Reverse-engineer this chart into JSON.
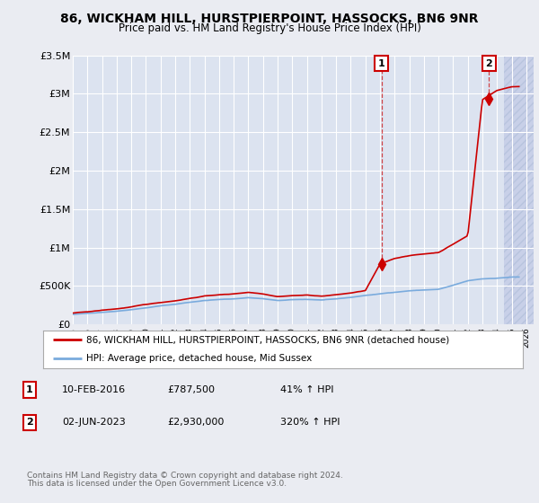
{
  "title": "86, WICKHAM HILL, HURSTPIERPOINT, HASSOCKS, BN6 9NR",
  "subtitle": "Price paid vs. HM Land Registry's House Price Index (HPI)",
  "title_fontsize": 10,
  "subtitle_fontsize": 8.5,
  "xlim": [
    1995.0,
    2026.5
  ],
  "ylim": [
    0,
    3500000
  ],
  "yticks": [
    0,
    500000,
    1000000,
    1500000,
    2000000,
    2500000,
    3000000,
    3500000
  ],
  "ytick_labels": [
    "£0",
    "£500K",
    "£1M",
    "£1.5M",
    "£2M",
    "£2.5M",
    "£3M",
    "£3.5M"
  ],
  "xtick_years": [
    1995,
    1996,
    1997,
    1998,
    1999,
    2000,
    2001,
    2002,
    2003,
    2004,
    2005,
    2006,
    2007,
    2008,
    2009,
    2010,
    2011,
    2012,
    2013,
    2014,
    2015,
    2016,
    2017,
    2018,
    2019,
    2020,
    2021,
    2022,
    2023,
    2024,
    2025,
    2026
  ],
  "background_color": "#eaecf2",
  "plot_bg_color": "#dce3f0",
  "hatch_color": "#c8d0e8",
  "grid_color": "#ffffff",
  "red_line_color": "#cc0000",
  "blue_line_color": "#7aabdd",
  "ann1_x": 2016.1,
  "ann1_y": 787500,
  "ann2_x": 2023.45,
  "ann2_y": 2930000,
  "legend_line1": "86, WICKHAM HILL, HURSTPIERPOINT, HASSOCKS, BN6 9NR (detached house)",
  "legend_line2": "HPI: Average price, detached house, Mid Sussex",
  "footer1": "Contains HM Land Registry data © Crown copyright and database right 2024.",
  "footer2": "This data is licensed under the Open Government Licence v3.0.",
  "table_rows": [
    {
      "num": "1",
      "date": "10-FEB-2016",
      "price": "£787,500",
      "hpi": "41% ↑ HPI"
    },
    {
      "num": "2",
      "date": "02-JUN-2023",
      "price": "£2,930,000",
      "hpi": "320% ↑ HPI"
    }
  ]
}
